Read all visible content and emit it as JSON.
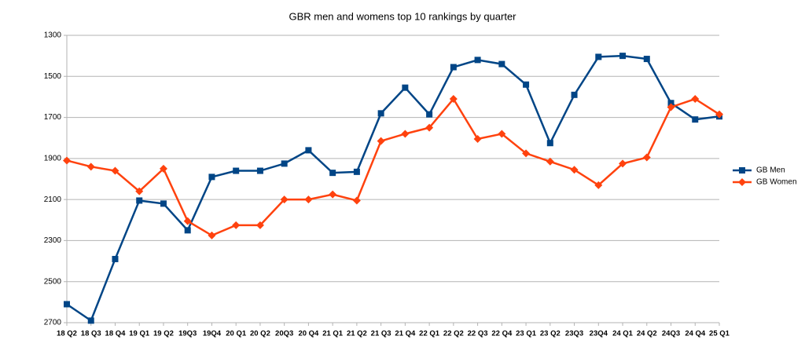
{
  "chart_data": {
    "type": "line",
    "title": "GBR men and womens top 10 rankings by quarter",
    "categories": [
      "18 Q2",
      "18 Q3",
      "18 Q4",
      "19 Q1",
      "19 Q2",
      "19Q3",
      "19Q4",
      "20 Q1",
      "20 Q2",
      "20Q3",
      "20 Q4",
      "21 Q1",
      "21 Q2",
      "21 Q3",
      "21 Q4",
      "22 Q1",
      "22 Q2",
      "22 Q3",
      "22 Q4",
      "23 Q1",
      "23 Q2",
      "23Q3",
      "23Q4",
      "24 Q1",
      "24 Q2",
      "24Q3",
      "24 Q4",
      "25 Q1"
    ],
    "series": [
      {
        "name": "GB Men",
        "color": "#004586",
        "marker": "square",
        "values": [
          2610,
          2690,
          2390,
          2105,
          2120,
          2250,
          1990,
          1960,
          1960,
          1925,
          1860,
          1970,
          1965,
          1680,
          1555,
          1685,
          1455,
          1420,
          1440,
          1540,
          1825,
          1590,
          1405,
          1400,
          1415,
          1630,
          1710,
          1695
        ]
      },
      {
        "name": "GB Women",
        "color": "#ff420e",
        "marker": "diamond",
        "values": [
          1910,
          1940,
          1960,
          2060,
          1950,
          2205,
          2275,
          2225,
          2225,
          2100,
          2100,
          2075,
          2105,
          1815,
          1780,
          1750,
          1610,
          1805,
          1780,
          1875,
          1915,
          1955,
          2030,
          1925,
          1895,
          1650,
          1610,
          1685
        ]
      }
    ],
    "ylim": [
      1300,
      2700
    ],
    "y_inverted": true,
    "yticks": [
      1300,
      1500,
      1700,
      1900,
      2100,
      2300,
      2500,
      2700
    ],
    "grid": true,
    "legend": "right"
  }
}
